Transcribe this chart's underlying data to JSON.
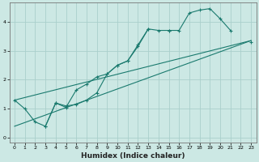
{
  "xlabel": "Humidex (Indice chaleur)",
  "background_color": "#cce8e4",
  "line_color": "#1a7a6e",
  "grid_color": "#aacfcc",
  "x_values": [
    0,
    1,
    2,
    3,
    4,
    5,
    6,
    7,
    8,
    9,
    10,
    11,
    12,
    13,
    14,
    15,
    16,
    17,
    18,
    19,
    20,
    21,
    22,
    23
  ],
  "line1_y": [
    1.3,
    1.0,
    0.55,
    0.4,
    1.2,
    1.1,
    1.15,
    1.3,
    1.55,
    2.2,
    2.5,
    2.65,
    3.2,
    3.75,
    null,
    3.7,
    3.7,
    4.3,
    4.4,
    4.45,
    4.1,
    3.7,
    null,
    3.3
  ],
  "line2_y": [
    null,
    null,
    null,
    0.4,
    1.2,
    1.05,
    1.65,
    1.85,
    2.1,
    2.2,
    2.5,
    2.65,
    3.15,
    3.75,
    3.7,
    3.7,
    null,
    null,
    null,
    null,
    null,
    null,
    null,
    null
  ],
  "line3_x": [
    0,
    23
  ],
  "line3_y": [
    1.3,
    3.35
  ],
  "line4_x": [
    0,
    23
  ],
  "line4_y": [
    0.4,
    3.35
  ],
  "ylim": [
    -0.15,
    4.65
  ],
  "xlim": [
    -0.5,
    23.5
  ],
  "yticks": [
    0,
    1,
    2,
    3,
    4
  ],
  "xticks": [
    0,
    1,
    2,
    3,
    4,
    5,
    6,
    7,
    8,
    9,
    10,
    11,
    12,
    13,
    14,
    15,
    16,
    17,
    18,
    19,
    20,
    21,
    22,
    23
  ]
}
